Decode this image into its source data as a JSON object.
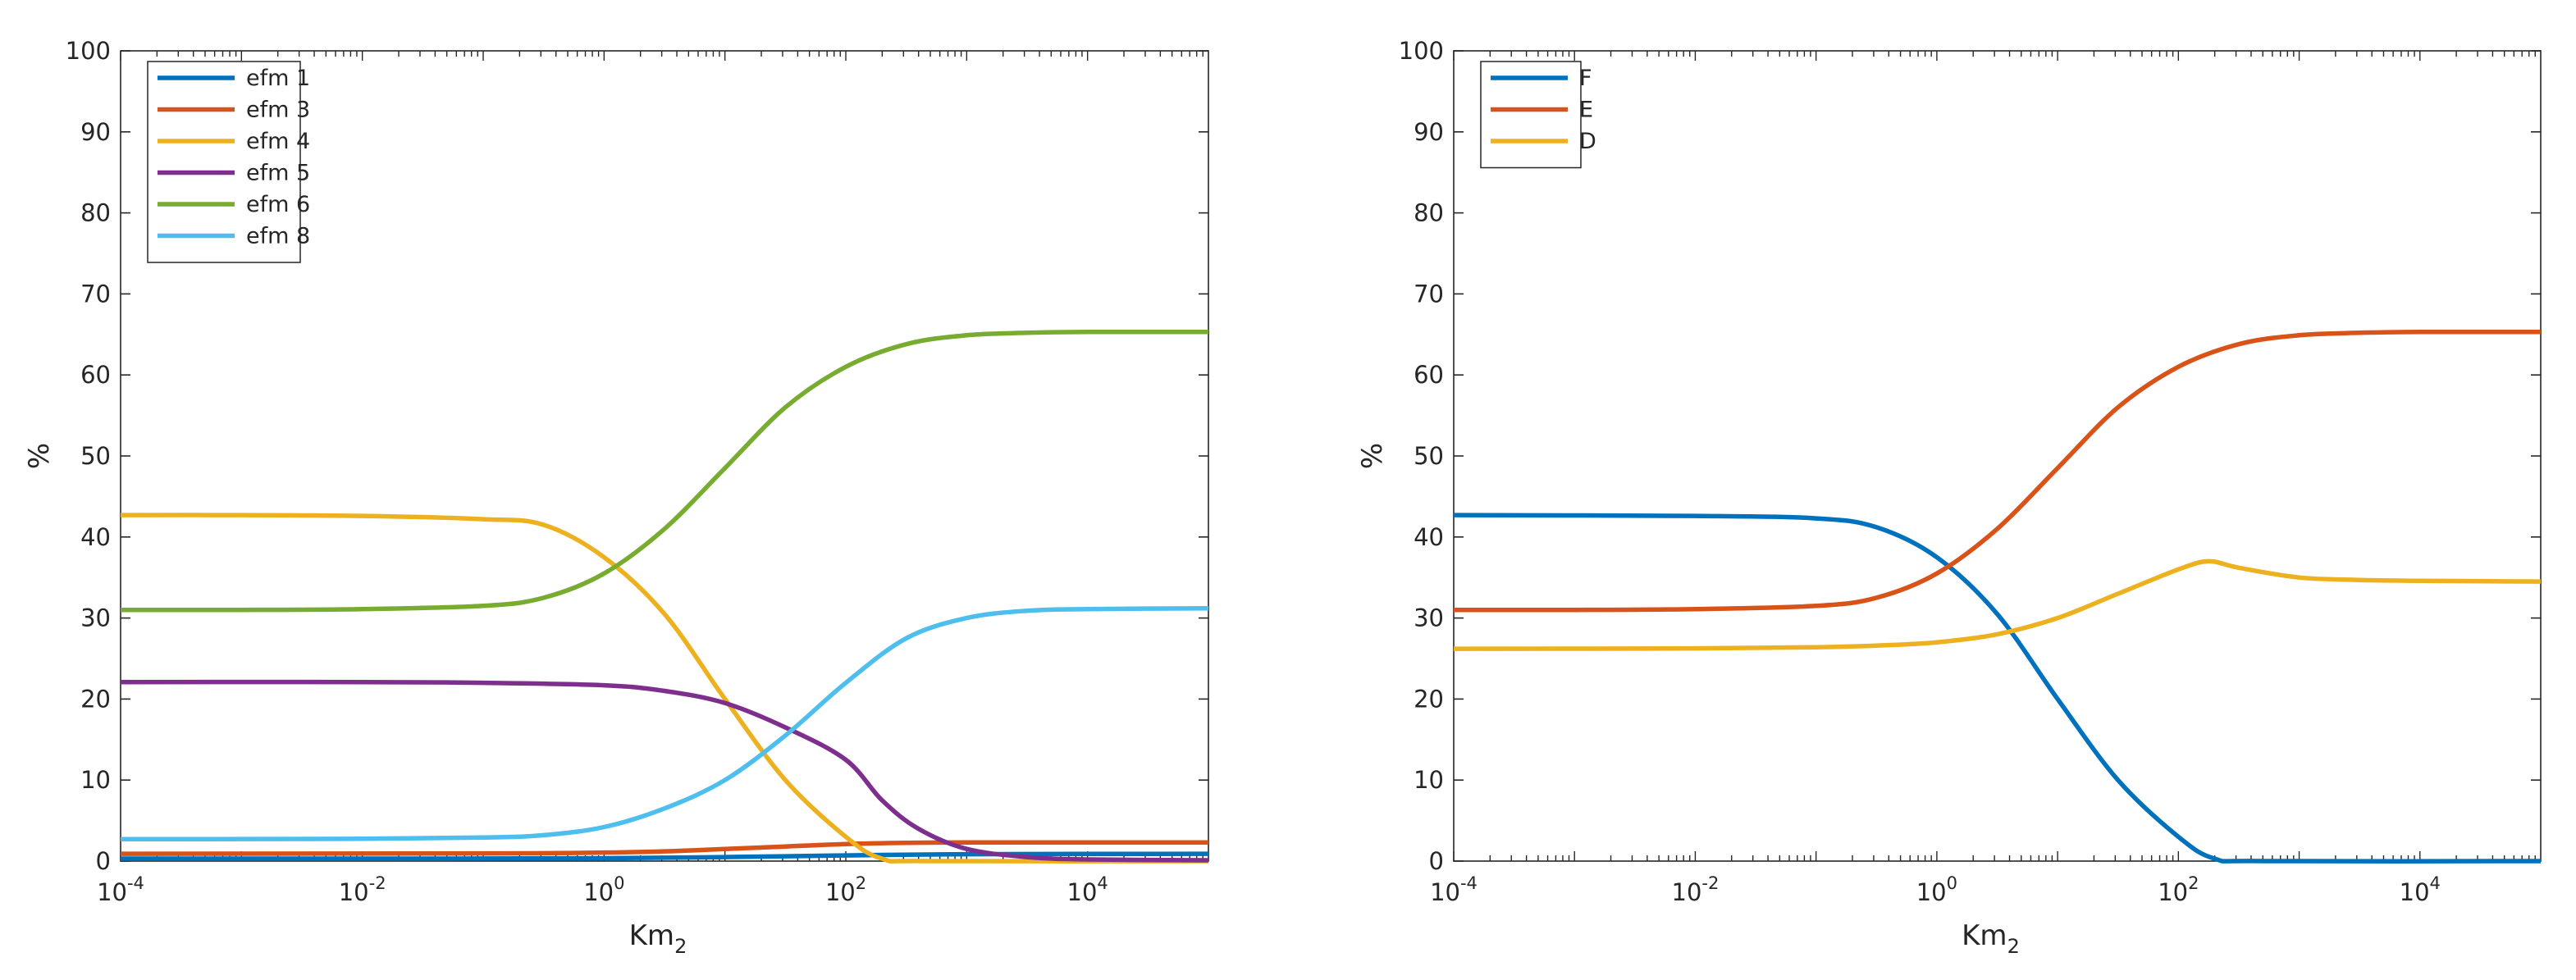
{
  "colors": {
    "blue": "#0072BD",
    "orange": "#D95319",
    "yellow": "#EDB120",
    "purple": "#7E2F8E",
    "green": "#77AC30",
    "cyan": "#4DBEEE",
    "axis": "#262626"
  },
  "chart_data": [
    {
      "type": "line",
      "title": "",
      "xlabel": "Km",
      "xlabel_subscript": "2",
      "ylabel": "%",
      "xscale": "log",
      "xlim": [
        0.0001,
        100000
      ],
      "ylim": [
        0,
        100
      ],
      "x_ticks": [
        {
          "value": 0.0001,
          "base": "10",
          "exp": "-4"
        },
        {
          "value": 0.01,
          "base": "10",
          "exp": "-2"
        },
        {
          "value": 1,
          "base": "10",
          "exp": "0"
        },
        {
          "value": 100,
          "base": "10",
          "exp": "2"
        },
        {
          "value": 10000,
          "base": "10",
          "exp": "4"
        }
      ],
      "y_ticks": [
        0,
        10,
        20,
        30,
        40,
        50,
        60,
        70,
        80,
        90,
        100
      ],
      "grid": false,
      "legend_position": "top-left",
      "series": [
        {
          "name": "efm 1",
          "color": "#0072BD",
          "points": [
            [
              -4,
              0.3
            ],
            [
              -2,
              0.3
            ],
            [
              0,
              0.35
            ],
            [
              1,
              0.5
            ],
            [
              2,
              0.7
            ],
            [
              3,
              0.85
            ],
            [
              5,
              0.9
            ]
          ]
        },
        {
          "name": "efm 3",
          "color": "#D95319",
          "points": [
            [
              -4,
              0.9
            ],
            [
              -1,
              0.95
            ],
            [
              0,
              1.05
            ],
            [
              0.5,
              1.2
            ],
            [
              1,
              1.5
            ],
            [
              1.5,
              1.8
            ],
            [
              2,
              2.1
            ],
            [
              2.5,
              2.25
            ],
            [
              3,
              2.3
            ],
            [
              5,
              2.3
            ]
          ]
        },
        {
          "name": "efm 4",
          "color": "#EDB120",
          "points": [
            [
              -4,
              42.7
            ],
            [
              -3,
              42.7
            ],
            [
              -2,
              42.6
            ],
            [
              -1,
              42.2
            ],
            [
              -0.5,
              41.5
            ],
            [
              0,
              37.5
            ],
            [
              0.5,
              30.5
            ],
            [
              1,
              20
            ],
            [
              1.5,
              10
            ],
            [
              2,
              3
            ],
            [
              2.3,
              0.3
            ],
            [
              2.7,
              0
            ],
            [
              5,
              0
            ]
          ]
        },
        {
          "name": "efm 5",
          "color": "#7E2F8E",
          "points": [
            [
              -4,
              22.1
            ],
            [
              -2,
              22.1
            ],
            [
              -1,
              22.0
            ],
            [
              0,
              21.7
            ],
            [
              0.5,
              21.0
            ],
            [
              1,
              19.5
            ],
            [
              1.5,
              16.5
            ],
            [
              2,
              12.5
            ],
            [
              2.3,
              7.5
            ],
            [
              2.6,
              4
            ],
            [
              3,
              1.5
            ],
            [
              3.5,
              0.5
            ],
            [
              4,
              0.2
            ],
            [
              5,
              0.1
            ]
          ]
        },
        {
          "name": "efm 6",
          "color": "#77AC30",
          "points": [
            [
              -4,
              31.0
            ],
            [
              -3,
              31.0
            ],
            [
              -2,
              31.1
            ],
            [
              -1,
              31.5
            ],
            [
              -0.5,
              32.5
            ],
            [
              0,
              35.5
            ],
            [
              0.5,
              41
            ],
            [
              1,
              48.5
            ],
            [
              1.5,
              56
            ],
            [
              2,
              61
            ],
            [
              2.5,
              63.8
            ],
            [
              3,
              64.9
            ],
            [
              3.5,
              65.2
            ],
            [
              4,
              65.3
            ],
            [
              5,
              65.3
            ]
          ]
        },
        {
          "name": "efm 8",
          "color": "#4DBEEE",
          "points": [
            [
              -4,
              2.7
            ],
            [
              -2,
              2.75
            ],
            [
              -1,
              2.9
            ],
            [
              -0.5,
              3.2
            ],
            [
              0,
              4.2
            ],
            [
              0.5,
              6.5
            ],
            [
              1,
              10
            ],
            [
              1.5,
              15.5
            ],
            [
              2,
              22
            ],
            [
              2.5,
              27.5
            ],
            [
              3,
              30
            ],
            [
              3.5,
              30.9
            ],
            [
              4,
              31.1
            ],
            [
              5,
              31.2
            ]
          ]
        }
      ]
    },
    {
      "type": "line",
      "title": "",
      "xlabel": "Km",
      "xlabel_subscript": "2",
      "ylabel": "%",
      "xscale": "log",
      "xlim": [
        0.0001,
        100000
      ],
      "ylim": [
        0,
        100
      ],
      "x_ticks": [
        {
          "value": 0.0001,
          "base": "10",
          "exp": "-4"
        },
        {
          "value": 0.01,
          "base": "10",
          "exp": "-2"
        },
        {
          "value": 1,
          "base": "10",
          "exp": "0"
        },
        {
          "value": 100,
          "base": "10",
          "exp": "2"
        },
        {
          "value": 10000,
          "base": "10",
          "exp": "4"
        }
      ],
      "y_ticks": [
        0,
        10,
        20,
        30,
        40,
        50,
        60,
        70,
        80,
        90,
        100
      ],
      "grid": false,
      "legend_position": "top-left",
      "series": [
        {
          "name": "F",
          "color": "#0072BD",
          "points": [
            [
              -4,
              42.7
            ],
            [
              -2,
              42.6
            ],
            [
              -1,
              42.3
            ],
            [
              -0.5,
              41.2
            ],
            [
              0,
              37.5
            ],
            [
              0.5,
              30.5
            ],
            [
              1,
              20
            ],
            [
              1.5,
              10
            ],
            [
              2,
              3
            ],
            [
              2.3,
              0.3
            ],
            [
              2.7,
              0
            ],
            [
              5,
              0
            ]
          ]
        },
        {
          "name": "E",
          "color": "#D95319",
          "points": [
            [
              -4,
              31.0
            ],
            [
              -3,
              31.0
            ],
            [
              -2,
              31.1
            ],
            [
              -1,
              31.5
            ],
            [
              -0.5,
              32.5
            ],
            [
              0,
              35.5
            ],
            [
              0.5,
              41
            ],
            [
              1,
              48.5
            ],
            [
              1.5,
              56
            ],
            [
              2,
              61
            ],
            [
              2.5,
              63.8
            ],
            [
              3,
              64.9
            ],
            [
              3.5,
              65.2
            ],
            [
              4,
              65.3
            ],
            [
              5,
              65.3
            ]
          ]
        },
        {
          "name": "D",
          "color": "#EDB120",
          "points": [
            [
              -4,
              26.2
            ],
            [
              -2,
              26.25
            ],
            [
              -1,
              26.4
            ],
            [
              -0.5,
              26.6
            ],
            [
              0,
              27
            ],
            [
              0.5,
              28
            ],
            [
              1,
              30
            ],
            [
              1.5,
              33
            ],
            [
              2,
              36
            ],
            [
              2.25,
              37
            ],
            [
              2.5,
              36.2
            ],
            [
              3,
              35.0
            ],
            [
              3.5,
              34.7
            ],
            [
              4,
              34.6
            ],
            [
              5,
              34.5
            ]
          ]
        }
      ]
    }
  ]
}
